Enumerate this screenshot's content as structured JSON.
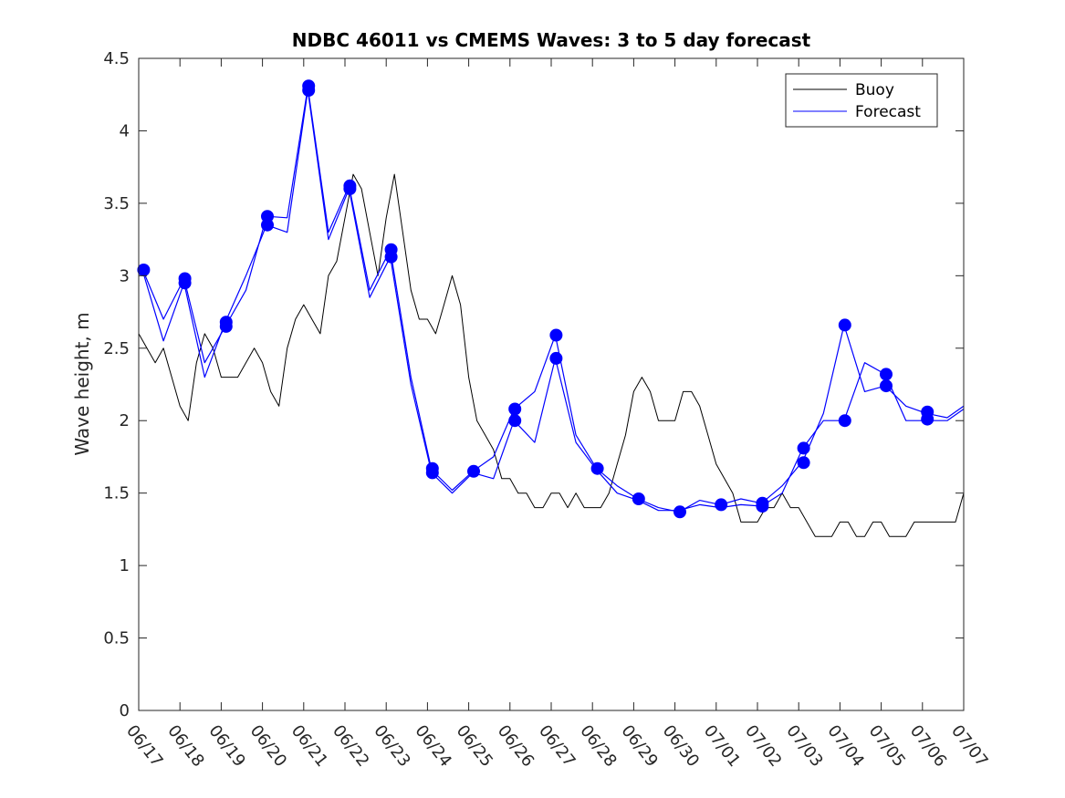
{
  "chart_data": {
    "type": "line",
    "title": "NDBC 46011 vs CMEMS Waves: 3 to 5 day forecast",
    "xlabel": "",
    "ylabel": "Wave height, m",
    "xlim": [
      0,
      20
    ],
    "ylim": [
      0,
      4.5
    ],
    "x_tick_labels": [
      "06/17",
      "06/18",
      "06/19",
      "06/20",
      "06/21",
      "06/22",
      "06/23",
      "06/24",
      "06/25",
      "06/26",
      "06/27",
      "06/28",
      "06/29",
      "06/30",
      "07/01",
      "07/02",
      "07/03",
      "07/04",
      "07/05",
      "07/06",
      "07/07"
    ],
    "y_ticks": [
      0,
      0.5,
      1,
      1.5,
      2,
      2.5,
      3,
      3.5,
      4,
      4.5
    ],
    "y_tick_labels": [
      "0",
      "0.5",
      "1",
      "1.5",
      "2",
      "2.5",
      "3",
      "3.5",
      "4",
      "4.5"
    ],
    "grid": false,
    "legend_position": "top-right",
    "legend": [
      {
        "label": "Buoy",
        "color": "#000000"
      },
      {
        "label": "Forecast",
        "color": "#0000ff"
      }
    ],
    "series": [
      {
        "name": "Buoy",
        "color": "#000000",
        "x": [
          0,
          0.2,
          0.4,
          0.6,
          0.8,
          1.0,
          1.2,
          1.4,
          1.6,
          1.8,
          2.0,
          2.2,
          2.4,
          2.6,
          2.8,
          3.0,
          3.2,
          3.4,
          3.6,
          3.8,
          4.0,
          4.2,
          4.4,
          4.6,
          4.8,
          5.0,
          5.2,
          5.4,
          5.6,
          5.8,
          6.0,
          6.2,
          6.4,
          6.6,
          6.8,
          7.0,
          7.2,
          7.4,
          7.6,
          7.8,
          8.0,
          8.2,
          8.4,
          8.6,
          8.8,
          9.0,
          9.2,
          9.4,
          9.6,
          9.8,
          10.0,
          10.2,
          10.4,
          10.6,
          10.8,
          11.0,
          11.2,
          11.4,
          11.6,
          11.8,
          12.0,
          12.2,
          12.4,
          12.6,
          12.8,
          13.0,
          13.2,
          13.4,
          13.6,
          13.8,
          14.0,
          14.2,
          14.4,
          14.6,
          14.8,
          15.0,
          15.2,
          15.4,
          15.6,
          15.8,
          16.0,
          16.2,
          16.4,
          16.6,
          16.8,
          17.0,
          17.2,
          17.4,
          17.6,
          17.8,
          18.0,
          18.2,
          18.4,
          18.6,
          18.8,
          19.0,
          19.2,
          19.4,
          19.6,
          19.8,
          20.0
        ],
        "values": [
          2.6,
          2.5,
          2.4,
          2.5,
          2.3,
          2.1,
          2.0,
          2.4,
          2.6,
          2.5,
          2.3,
          2.3,
          2.3,
          2.4,
          2.5,
          2.4,
          2.2,
          2.1,
          2.5,
          2.7,
          2.8,
          2.7,
          2.6,
          3.0,
          3.1,
          3.4,
          3.7,
          3.6,
          3.3,
          3.0,
          3.4,
          3.7,
          3.3,
          2.9,
          2.7,
          2.7,
          2.6,
          2.8,
          3.0,
          2.8,
          2.3,
          2.0,
          1.9,
          1.8,
          1.6,
          1.6,
          1.5,
          1.5,
          1.4,
          1.4,
          1.5,
          1.5,
          1.4,
          1.5,
          1.4,
          1.4,
          1.4,
          1.5,
          1.7,
          1.9,
          2.2,
          2.3,
          2.2,
          2.0,
          2.0,
          2.0,
          2.2,
          2.2,
          2.1,
          1.9,
          1.7,
          1.6,
          1.5,
          1.3,
          1.3,
          1.3,
          1.4,
          1.4,
          1.5,
          1.4,
          1.4,
          1.3,
          1.2,
          1.2,
          1.2,
          1.3,
          1.3,
          1.2,
          1.2,
          1.3,
          1.3,
          1.2,
          1.2,
          1.2,
          1.3,
          1.3,
          1.3,
          1.3,
          1.3,
          1.3,
          1.5
        ]
      },
      {
        "name": "Forecast",
        "color": "#0000ff",
        "x": [
          0.1,
          0.6,
          1.1,
          1.6,
          2.1,
          2.6,
          3.1,
          3.6,
          4.1,
          4.6,
          5.1,
          5.6,
          6.1,
          6.6,
          7.1,
          7.6,
          8.1,
          8.6,
          9.1,
          9.6,
          10.1,
          10.6,
          11.1,
          11.6,
          12.1,
          12.6,
          13.1,
          13.6,
          14.1,
          14.6,
          15.1,
          15.6,
          16.1,
          16.6,
          17.1,
          17.6,
          18.1,
          18.6,
          19.1,
          19.6,
          20.0
        ],
        "values": [
          3.04,
          2.7,
          2.98,
          2.4,
          2.65,
          2.9,
          3.41,
          3.4,
          4.3,
          3.3,
          3.62,
          2.9,
          3.18,
          2.3,
          1.66,
          1.52,
          1.65,
          1.75,
          2.08,
          2.2,
          2.59,
          1.9,
          1.67,
          1.55,
          1.46,
          1.4,
          1.37,
          1.45,
          1.42,
          1.46,
          1.43,
          1.55,
          1.72,
          2.05,
          2.66,
          2.2,
          2.24,
          2.1,
          2.05,
          2.02,
          2.1
        ]
      },
      {
        "name": "",
        "color": "#0000ff",
        "x": [
          0.1,
          0.6,
          1.1,
          1.6,
          2.1,
          2.6,
          3.1,
          3.6,
          4.1,
          4.6,
          5.1,
          5.6,
          6.1,
          6.6,
          7.1,
          7.6,
          8.1,
          8.6,
          9.1,
          9.6,
          10.1,
          10.6,
          11.1,
          11.6,
          12.1,
          12.6,
          13.1,
          13.6,
          14.1,
          14.6,
          15.1,
          15.6,
          16.1,
          16.6,
          17.1,
          17.6,
          18.1,
          18.6,
          19.1,
          19.6,
          20.0
        ],
        "values": [
          3.03,
          2.55,
          2.95,
          2.3,
          2.68,
          3.0,
          3.35,
          3.3,
          4.28,
          3.25,
          3.6,
          2.85,
          3.13,
          2.25,
          1.64,
          1.5,
          1.64,
          1.6,
          2.0,
          1.85,
          2.43,
          1.85,
          1.66,
          1.5,
          1.45,
          1.38,
          1.38,
          1.42,
          1.4,
          1.42,
          1.41,
          1.5,
          1.81,
          2.0,
          2.0,
          2.4,
          2.32,
          2.0,
          2.0,
          2.0,
          2.08
        ]
      }
    ],
    "forecast_markers": [
      {
        "x": 0.12,
        "y": 3.04
      },
      {
        "x": 1.12,
        "y": 2.98
      },
      {
        "x": 1.12,
        "y": 2.95
      },
      {
        "x": 2.12,
        "y": 2.68
      },
      {
        "x": 2.12,
        "y": 2.65
      },
      {
        "x": 3.12,
        "y": 3.41
      },
      {
        "x": 3.12,
        "y": 3.35
      },
      {
        "x": 4.12,
        "y": 4.31
      },
      {
        "x": 4.12,
        "y": 4.28
      },
      {
        "x": 5.12,
        "y": 3.62
      },
      {
        "x": 5.12,
        "y": 3.6
      },
      {
        "x": 6.12,
        "y": 3.18
      },
      {
        "x": 6.12,
        "y": 3.13
      },
      {
        "x": 7.12,
        "y": 1.67
      },
      {
        "x": 7.12,
        "y": 1.64
      },
      {
        "x": 8.12,
        "y": 1.65
      },
      {
        "x": 9.12,
        "y": 2.08
      },
      {
        "x": 9.12,
        "y": 2.0
      },
      {
        "x": 10.12,
        "y": 2.59
      },
      {
        "x": 10.12,
        "y": 2.43
      },
      {
        "x": 11.12,
        "y": 1.67
      },
      {
        "x": 12.12,
        "y": 1.46
      },
      {
        "x": 13.12,
        "y": 1.37
      },
      {
        "x": 14.12,
        "y": 1.42
      },
      {
        "x": 15.12,
        "y": 1.43
      },
      {
        "x": 15.12,
        "y": 1.41
      },
      {
        "x": 16.12,
        "y": 1.81
      },
      {
        "x": 16.12,
        "y": 1.71
      },
      {
        "x": 17.12,
        "y": 2.66
      },
      {
        "x": 17.12,
        "y": 2.0
      },
      {
        "x": 18.12,
        "y": 2.32
      },
      {
        "x": 18.12,
        "y": 2.24
      },
      {
        "x": 19.12,
        "y": 2.06
      },
      {
        "x": 19.12,
        "y": 2.01
      }
    ]
  }
}
